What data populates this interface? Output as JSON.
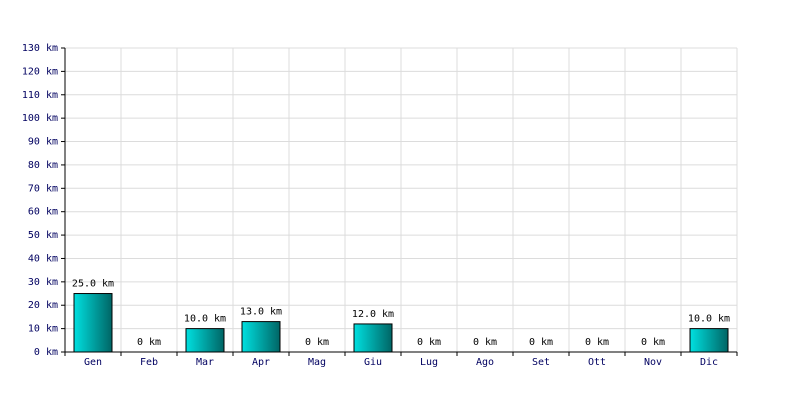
{
  "chart_data": {
    "type": "bar",
    "categories": [
      "Gen",
      "Feb",
      "Mar",
      "Apr",
      "Mag",
      "Giu",
      "Lug",
      "Ago",
      "Set",
      "Ott",
      "Nov",
      "Dic"
    ],
    "values": [
      25,
      0,
      10,
      13,
      0,
      12,
      0,
      0,
      0,
      0,
      0,
      10
    ],
    "value_labels": [
      "25.0 km",
      "0 km",
      "10.0 km",
      "13.0 km",
      "0 km",
      "12.0 km",
      "0 km",
      "0 km",
      "0 km",
      "0 km",
      "0 km",
      "10.0 km"
    ],
    "color": "#00e0e0",
    "ylim": [
      0,
      130
    ],
    "yticks": [
      {
        "value": 0,
        "label": "0 km"
      },
      {
        "value": 10,
        "label": "10 km"
      },
      {
        "value": 20,
        "label": "20 km"
      },
      {
        "value": 30,
        "label": "30 km"
      },
      {
        "value": 40,
        "label": "40 km"
      },
      {
        "value": 50,
        "label": "50 km"
      },
      {
        "value": 60,
        "label": "60 km"
      },
      {
        "value": 70,
        "label": "70 km"
      },
      {
        "value": 80,
        "label": "80 km"
      },
      {
        "value": 90,
        "label": "90 km"
      },
      {
        "value": 100,
        "label": "100 km"
      },
      {
        "value": 110,
        "label": "110 km"
      },
      {
        "value": 120,
        "label": "120 km"
      },
      {
        "value": 130,
        "label": "130 km"
      }
    ],
    "grid": true
  }
}
